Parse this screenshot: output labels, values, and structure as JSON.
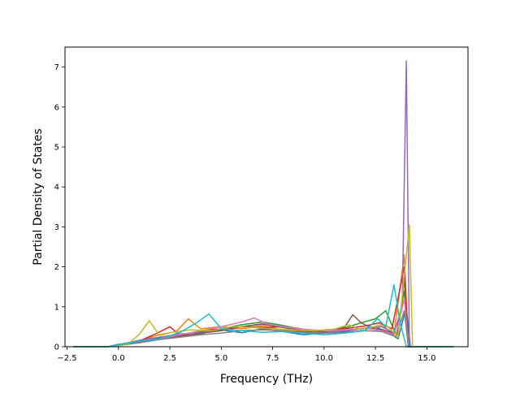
{
  "chart_data": {
    "type": "line",
    "title": "",
    "xlabel": "Frequency (THz)",
    "ylabel": "Partial Density of States",
    "xlim": [
      -2.6,
      17.0
    ],
    "ylim": [
      0,
      7.5
    ],
    "xticks": [
      -2.5,
      0.0,
      2.5,
      5.0,
      7.5,
      10.0,
      12.5,
      15.0
    ],
    "xtick_labels": [
      "−2.5",
      "0.0",
      "2.5",
      "5.0",
      "7.5",
      "10.0",
      "12.5",
      "15.0"
    ],
    "yticks": [
      0,
      1,
      2,
      3,
      4,
      5,
      6,
      7
    ],
    "ytick_labels": [
      "0",
      "1",
      "2",
      "3",
      "4",
      "5",
      "6",
      "7"
    ],
    "grid": false,
    "legend": false,
    "x_data_range": [
      -2.2,
      16.3
    ],
    "colors": [
      "#1f77b4",
      "#ff7f0e",
      "#2ca02c",
      "#d62728",
      "#9467bd",
      "#8c564b",
      "#e377c2",
      "#7f7f7f",
      "#bcbd22",
      "#17becf"
    ],
    "series": [
      {
        "color": "#1f77b4",
        "points": [
          [
            -2.2,
            0
          ],
          [
            -0.5,
            0
          ],
          [
            0,
            0.06
          ],
          [
            1,
            0.12
          ],
          [
            2,
            0.18
          ],
          [
            3,
            0.3
          ],
          [
            4,
            0.38
          ],
          [
            5,
            0.42
          ],
          [
            6,
            0.35
          ],
          [
            7,
            0.45
          ],
          [
            8,
            0.38
          ],
          [
            9,
            0.3
          ],
          [
            10,
            0.34
          ],
          [
            11,
            0.38
          ],
          [
            11.8,
            0.45
          ],
          [
            12.4,
            0.5
          ],
          [
            13,
            0.4
          ],
          [
            13.6,
            0.2
          ],
          [
            14.0,
            1.0
          ],
          [
            14.2,
            0
          ],
          [
            16.3,
            0
          ]
        ]
      },
      {
        "color": "#ff7f0e",
        "points": [
          [
            -2.2,
            0
          ],
          [
            -0.5,
            0
          ],
          [
            0,
            0.04
          ],
          [
            1,
            0.15
          ],
          [
            2,
            0.3
          ],
          [
            2.8,
            0.38
          ],
          [
            3.4,
            0.7
          ],
          [
            4,
            0.45
          ],
          [
            5,
            0.5
          ],
          [
            6,
            0.45
          ],
          [
            7,
            0.52
          ],
          [
            8,
            0.42
          ],
          [
            9,
            0.38
          ],
          [
            10,
            0.36
          ],
          [
            11,
            0.42
          ],
          [
            12,
            0.45
          ],
          [
            12.8,
            0.55
          ],
          [
            13.4,
            0.3
          ],
          [
            13.9,
            2.3
          ],
          [
            14.1,
            0
          ],
          [
            16.3,
            0
          ]
        ]
      },
      {
        "color": "#2ca02c",
        "points": [
          [
            -2.2,
            0
          ],
          [
            -0.5,
            0
          ],
          [
            0,
            0.03
          ],
          [
            1,
            0.1
          ],
          [
            2,
            0.2
          ],
          [
            3,
            0.28
          ],
          [
            4,
            0.32
          ],
          [
            5,
            0.45
          ],
          [
            6,
            0.55
          ],
          [
            7,
            0.62
          ],
          [
            7.8,
            0.55
          ],
          [
            8.5,
            0.48
          ],
          [
            9.5,
            0.4
          ],
          [
            10.5,
            0.42
          ],
          [
            11.2,
            0.5
          ],
          [
            11.8,
            0.6
          ],
          [
            12.5,
            0.7
          ],
          [
            13,
            0.9
          ],
          [
            13.5,
            0.3
          ],
          [
            13.9,
            1.4
          ],
          [
            14.1,
            0
          ],
          [
            16.3,
            0
          ]
        ]
      },
      {
        "color": "#d62728",
        "points": [
          [
            -2.2,
            0
          ],
          [
            -0.5,
            0
          ],
          [
            0,
            0.04
          ],
          [
            1,
            0.14
          ],
          [
            1.8,
            0.32
          ],
          [
            2.5,
            0.5
          ],
          [
            3,
            0.28
          ],
          [
            4,
            0.4
          ],
          [
            5,
            0.45
          ],
          [
            6,
            0.5
          ],
          [
            7,
            0.48
          ],
          [
            8,
            0.5
          ],
          [
            9,
            0.36
          ],
          [
            10,
            0.42
          ],
          [
            11,
            0.45
          ],
          [
            12,
            0.52
          ],
          [
            12.7,
            0.6
          ],
          [
            13.3,
            0.45
          ],
          [
            13.9,
            2.0
          ],
          [
            14.1,
            0
          ],
          [
            16.3,
            0
          ]
        ]
      },
      {
        "color": "#9467bd",
        "points": [
          [
            -2.2,
            0
          ],
          [
            -0.5,
            0
          ],
          [
            0,
            0.05
          ],
          [
            1,
            0.16
          ],
          [
            2,
            0.24
          ],
          [
            3,
            0.32
          ],
          [
            4,
            0.36
          ],
          [
            5,
            0.4
          ],
          [
            6,
            0.5
          ],
          [
            7,
            0.58
          ],
          [
            8,
            0.5
          ],
          [
            9,
            0.42
          ],
          [
            10,
            0.36
          ],
          [
            11,
            0.4
          ],
          [
            12,
            0.45
          ],
          [
            12.8,
            0.5
          ],
          [
            13.4,
            0.35
          ],
          [
            13.8,
            1.0
          ],
          [
            14.0,
            7.15
          ],
          [
            14.15,
            0
          ],
          [
            16.3,
            0
          ]
        ]
      },
      {
        "color": "#8c564b",
        "points": [
          [
            -2.2,
            0
          ],
          [
            -0.5,
            0
          ],
          [
            0,
            0.05
          ],
          [
            1,
            0.12
          ],
          [
            2,
            0.22
          ],
          [
            3,
            0.26
          ],
          [
            4,
            0.34
          ],
          [
            5,
            0.4
          ],
          [
            6,
            0.5
          ],
          [
            7,
            0.56
          ],
          [
            8,
            0.48
          ],
          [
            9,
            0.4
          ],
          [
            10,
            0.38
          ],
          [
            11,
            0.5
          ],
          [
            11.4,
            0.8
          ],
          [
            11.8,
            0.6
          ],
          [
            12.4,
            0.45
          ],
          [
            13,
            0.4
          ],
          [
            13.6,
            0.3
          ],
          [
            13.9,
            1.7
          ],
          [
            14.1,
            0
          ],
          [
            16.3,
            0
          ]
        ]
      },
      {
        "color": "#e377c2",
        "points": [
          [
            -2.2,
            0
          ],
          [
            -0.5,
            0
          ],
          [
            0,
            0.05
          ],
          [
            1,
            0.14
          ],
          [
            2,
            0.2
          ],
          [
            3,
            0.3
          ],
          [
            4,
            0.4
          ],
          [
            5,
            0.5
          ],
          [
            6,
            0.62
          ],
          [
            6.6,
            0.72
          ],
          [
            7.2,
            0.58
          ],
          [
            8,
            0.5
          ],
          [
            9,
            0.44
          ],
          [
            10,
            0.4
          ],
          [
            11,
            0.42
          ],
          [
            12,
            0.46
          ],
          [
            12.8,
            0.4
          ],
          [
            13.5,
            0.3
          ],
          [
            13.9,
            1.2
          ],
          [
            14.1,
            0
          ],
          [
            16.3,
            0
          ]
        ]
      },
      {
        "color": "#7f7f7f",
        "points": [
          [
            -2.2,
            0
          ],
          [
            -0.5,
            0
          ],
          [
            0,
            0.04
          ],
          [
            1,
            0.1
          ],
          [
            2,
            0.18
          ],
          [
            3,
            0.24
          ],
          [
            4,
            0.3
          ],
          [
            5,
            0.34
          ],
          [
            6,
            0.4
          ],
          [
            7,
            0.42
          ],
          [
            8,
            0.4
          ],
          [
            9,
            0.36
          ],
          [
            10,
            0.34
          ],
          [
            11,
            0.36
          ],
          [
            12,
            0.4
          ],
          [
            12.8,
            0.38
          ],
          [
            13.5,
            0.25
          ],
          [
            13.9,
            0.9
          ],
          [
            14.1,
            0
          ],
          [
            16.3,
            0
          ]
        ]
      },
      {
        "color": "#bcbd22",
        "points": [
          [
            -2.2,
            0
          ],
          [
            -0.5,
            0
          ],
          [
            0,
            0.03
          ],
          [
            0.5,
            0.08
          ],
          [
            1,
            0.3
          ],
          [
            1.5,
            0.65
          ],
          [
            2,
            0.28
          ],
          [
            2.6,
            0.36
          ],
          [
            3.5,
            0.42
          ],
          [
            4.5,
            0.4
          ],
          [
            5.5,
            0.5
          ],
          [
            6.5,
            0.48
          ],
          [
            7.5,
            0.45
          ],
          [
            8.5,
            0.42
          ],
          [
            9.5,
            0.4
          ],
          [
            10.5,
            0.44
          ],
          [
            11.2,
            0.55
          ],
          [
            11.8,
            0.42
          ],
          [
            12.4,
            0.5
          ],
          [
            13,
            0.55
          ],
          [
            13.6,
            0.25
          ],
          [
            14.15,
            3.05
          ],
          [
            14.3,
            0
          ],
          [
            16.3,
            0
          ]
        ]
      },
      {
        "color": "#17becf",
        "points": [
          [
            -2.2,
            0
          ],
          [
            -0.5,
            0
          ],
          [
            0,
            0.05
          ],
          [
            1,
            0.14
          ],
          [
            2,
            0.2
          ],
          [
            3,
            0.36
          ],
          [
            3.8,
            0.6
          ],
          [
            4.4,
            0.82
          ],
          [
            5,
            0.45
          ],
          [
            6,
            0.4
          ],
          [
            7,
            0.36
          ],
          [
            8,
            0.38
          ],
          [
            9,
            0.34
          ],
          [
            10,
            0.3
          ],
          [
            11,
            0.34
          ],
          [
            12,
            0.4
          ],
          [
            12.6,
            0.7
          ],
          [
            13.0,
            0.5
          ],
          [
            13.4,
            1.55
          ],
          [
            13.7,
            0.6
          ],
          [
            14.0,
            0
          ],
          [
            16.3,
            0
          ]
        ]
      }
    ]
  }
}
